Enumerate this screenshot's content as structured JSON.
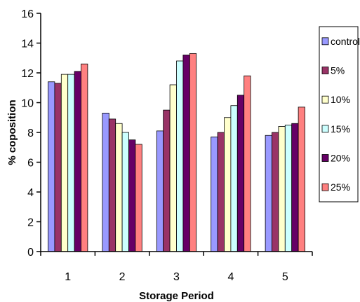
{
  "chart_data": {
    "type": "bar",
    "title": "",
    "xlabel": "Storage Period",
    "ylabel": "% coposition",
    "categories": [
      "1",
      "2",
      "3",
      "4",
      "5"
    ],
    "ylim": [
      0,
      16
    ],
    "yticks": [
      0,
      2,
      4,
      6,
      8,
      10,
      12,
      14,
      16
    ],
    "grid": false,
    "legend_position": "right",
    "series": [
      {
        "name": "control",
        "color": "#9999ff",
        "values": [
          11.4,
          9.3,
          8.1,
          7.7,
          7.8
        ]
      },
      {
        "name": "5%",
        "color": "#993366",
        "values": [
          11.3,
          8.9,
          9.5,
          8.0,
          8.0
        ]
      },
      {
        "name": "10%",
        "color": "#ffffcc",
        "values": [
          11.9,
          8.6,
          11.2,
          9.0,
          8.4
        ]
      },
      {
        "name": "15%",
        "color": "#ccffff",
        "values": [
          11.9,
          8.0,
          12.8,
          9.8,
          8.5
        ]
      },
      {
        "name": "20%",
        "color": "#660066",
        "values": [
          12.1,
          7.5,
          13.2,
          10.5,
          8.6
        ]
      },
      {
        "name": "25%",
        "color": "#ff8080",
        "values": [
          12.6,
          7.2,
          13.3,
          11.8,
          9.7
        ]
      }
    ]
  }
}
